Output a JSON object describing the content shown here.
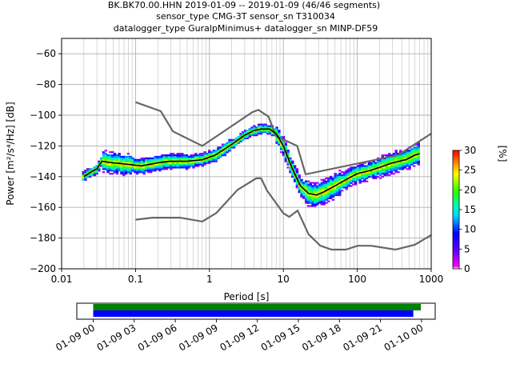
{
  "title": {
    "line1": "BK.BK70.00.HHN   2019-01-09 -- 2019-01-09  (46/46 segments)",
    "line2": "sensor_type CMG-3T sensor_sn T310034",
    "line3": "datalogger_type GuralpMinimus+ datalogger_sn MINP-DF59"
  },
  "chart_data": [
    {
      "type": "heatmap",
      "xlabel": "Period [s]",
      "ylabel": "Power [m²/s⁴/Hz] [dB]",
      "xscale": "log",
      "xlim": [
        0.01,
        1000
      ],
      "ylim": [
        -200,
        -50
      ],
      "xticks": [
        {
          "v": 0.01,
          "label": "0.01"
        },
        {
          "v": 0.1,
          "label": "0.1"
        },
        {
          "v": 1,
          "label": "1"
        },
        {
          "v": 10,
          "label": "10"
        },
        {
          "v": 100,
          "label": "100"
        },
        {
          "v": 1000,
          "label": "1000"
        }
      ],
      "yticks": [
        {
          "v": -60,
          "label": "−60"
        },
        {
          "v": -80,
          "label": "−80"
        },
        {
          "v": -100,
          "label": "−100"
        },
        {
          "v": -120,
          "label": "−120"
        },
        {
          "v": -140,
          "label": "−140"
        },
        {
          "v": -160,
          "label": "−160"
        },
        {
          "v": -180,
          "label": "−180"
        },
        {
          "v": -200,
          "label": "−200"
        }
      ],
      "grid": true,
      "colorbar": {
        "label": "[%]",
        "range": [
          0,
          30
        ],
        "ticks": [
          {
            "v": 0,
            "label": "0"
          },
          {
            "v": 5,
            "label": "5"
          },
          {
            "v": 10,
            "label": "10"
          },
          {
            "v": 15,
            "label": "15"
          },
          {
            "v": 20,
            "label": "20"
          },
          {
            "v": 25,
            "label": "25"
          },
          {
            "v": 30,
            "label": "30"
          }
        ],
        "stops": [
          {
            "v": 0,
            "color": "#ffffff"
          },
          {
            "v": 0.02,
            "color": "#ff00ff"
          },
          {
            "v": 0.15,
            "color": "#6400ff"
          },
          {
            "v": 0.3,
            "color": "#0000ff"
          },
          {
            "v": 0.45,
            "color": "#00d8ff"
          },
          {
            "v": 0.55,
            "color": "#00ffa0"
          },
          {
            "v": 0.65,
            "color": "#28ff00"
          },
          {
            "v": 0.8,
            "color": "#ffff00"
          },
          {
            "v": 1.0,
            "color": "#ff0000"
          }
        ]
      },
      "psd_mean": {
        "color": "#000000",
        "x": [
          0.02,
          0.025,
          0.03,
          0.035,
          0.05,
          0.08,
          0.12,
          0.2,
          0.3,
          0.5,
          0.8,
          1.2,
          2,
          3,
          4,
          5,
          6.5,
          8,
          10,
          13,
          17,
          22,
          28,
          35,
          50,
          70,
          100,
          150,
          200,
          300,
          450,
          600,
          700
        ],
        "y": [
          -140,
          -137,
          -135,
          -130,
          -131,
          -132,
          -133,
          -131,
          -130,
          -130,
          -129,
          -126,
          -119,
          -113,
          -110,
          -109,
          -109,
          -112,
          -120,
          -134,
          -146,
          -151,
          -152,
          -150,
          -146,
          -142,
          -138,
          -136,
          -134,
          -131,
          -129,
          -126,
          -125
        ]
      },
      "noise_models": {
        "color": "#666666",
        "nhnm": {
          "x": [
            0.1,
            0.22,
            0.32,
            0.8,
            3.8,
            4.6,
            6.3,
            7.9,
            15.4,
            20,
            354.8,
            1000
          ],
          "y": [
            -91.5,
            -97.4,
            -110.5,
            -120,
            -98,
            -96.5,
            -101,
            -113.5,
            -120,
            -138.5,
            -126,
            -112
          ]
        },
        "nlnm": {
          "x": [
            0.1,
            0.17,
            0.4,
            0.8,
            1.24,
            2.4,
            4.3,
            5,
            6,
            10,
            12,
            15.6,
            21.9,
            31.6,
            45,
            70,
            101,
            154,
            328,
            600,
            1000
          ],
          "y": [
            -168,
            -166.7,
            -166.7,
            -169.2,
            -163.7,
            -148.6,
            -141.1,
            -141.1,
            -149,
            -163.8,
            -166.2,
            -162.1,
            -177.5,
            -185,
            -187.5,
            -187.5,
            -185,
            -185,
            -187.5,
            -184.4,
            -178
          ]
        }
      }
    },
    {
      "type": "bar",
      "title": "",
      "xlabel": "",
      "categories": [
        "01-09 00",
        "01-09 03",
        "01-09 06",
        "01-09 09",
        "01-09 12",
        "01-09 15",
        "01-09 18",
        "01-09 21",
        "01-10 00"
      ],
      "x_hours": [
        0,
        3,
        6,
        9,
        12,
        15,
        18,
        21,
        24
      ],
      "xlim_hours": [
        -1.2,
        25.0
      ],
      "series": [
        {
          "color": "#008000",
          "start_hour": 0,
          "end_hour": 23.95
        },
        {
          "color": "#0000ff",
          "start_hour": 0,
          "end_hour": 23.4
        }
      ]
    }
  ]
}
